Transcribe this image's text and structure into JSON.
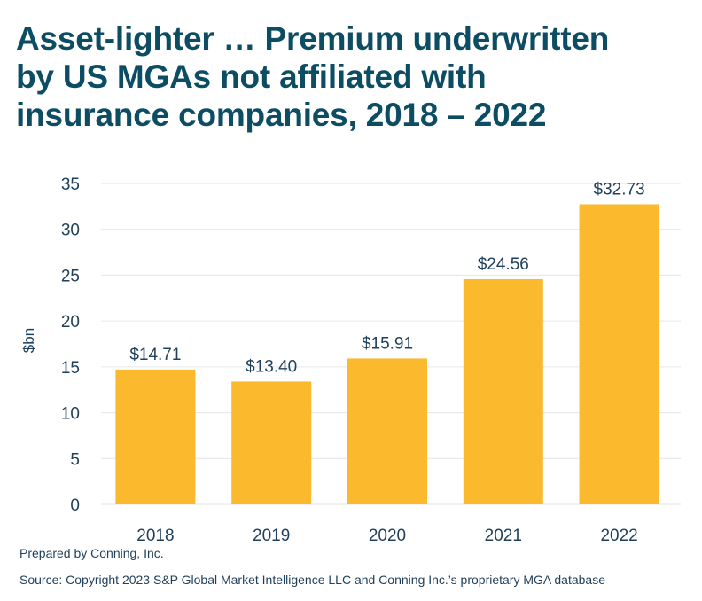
{
  "title_lines": [
    "Asset-lighter … Premium underwritten",
    "by US MGAs not affiliated with",
    "insurance companies, 2018 – 2022"
  ],
  "footer": {
    "prepared": "Prepared by Conning, Inc.",
    "source": "Source: Copyright 2023 S&P Global Market Intelligence LLC and Conning Inc.’s proprietary MGA database"
  },
  "colors": {
    "title": "#0d4d64",
    "bar": "#fbb92e",
    "text": "#1f3f5a",
    "grid": "#e6e6e6"
  },
  "chart_data": {
    "type": "bar",
    "title": "Asset-lighter … Premium underwritten by US MGAs not affiliated with insurance companies, 2018 – 2022",
    "categories": [
      "2018",
      "2019",
      "2020",
      "2021",
      "2022"
    ],
    "values": [
      14.71,
      13.4,
      15.91,
      24.56,
      32.73
    ],
    "data_labels": [
      "$14.71",
      "$13.40",
      "$15.91",
      "$24.56",
      "$32.73"
    ],
    "xlabel": "",
    "ylabel": "$bn",
    "ylim": [
      0,
      35
    ],
    "yticks": [
      0,
      5,
      10,
      15,
      20,
      25,
      30,
      35
    ],
    "grid": true,
    "legend": "none"
  }
}
